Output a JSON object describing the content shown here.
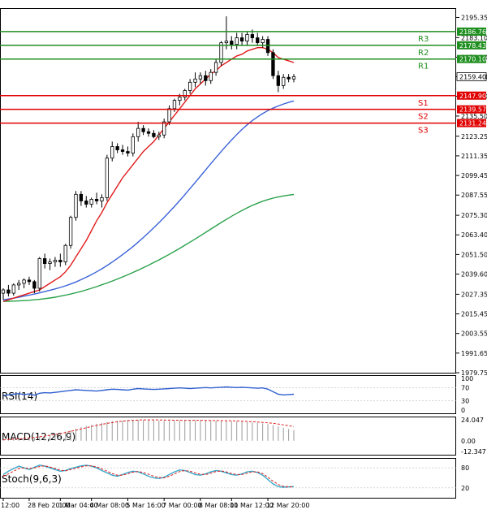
{
  "chart_data": {
    "type": "candlestick",
    "main": {
      "ylim": [
        1979.75,
        2201.0
      ],
      "y_ticks": [
        2195.35,
        2183.1,
        2171.2,
        2159.4,
        2147.5,
        2135.5,
        2123.25,
        2111.35,
        2099.45,
        2087.55,
        2075.3,
        2063.4,
        2051.5,
        2039.6,
        2027.35,
        2015.45,
        2003.55,
        1991.65,
        1979.75
      ],
      "y_tick_labels": [
        "2195.35",
        "2183.10",
        "2171.20",
        "2159.40",
        "2147.50",
        "2135.50",
        "2123.25",
        "2111.35",
        "2099.45",
        "2087.55",
        "2075.30",
        "2063.40",
        "2051.50",
        "2039.60",
        "2027.35",
        "2015.45",
        "2003.55",
        "1991.65",
        "1979.75"
      ],
      "current_price": "2159.40",
      "levels": [
        {
          "name": "R3",
          "value": 2186.76,
          "label": "2186.76",
          "color": "#1f8f1f"
        },
        {
          "name": "R2",
          "value": 2178.43,
          "label": "2178.43",
          "color": "#1f8f1f"
        },
        {
          "name": "R1",
          "value": 2170.1,
          "label": "2170.10",
          "color": "#1f8f1f"
        },
        {
          "name": "S1",
          "value": 2147.9,
          "label": "2147.90",
          "color": "#e00000"
        },
        {
          "name": "S2",
          "value": 2139.57,
          "label": "2139.57",
          "color": "#e00000"
        },
        {
          "name": "S3",
          "value": 2131.24,
          "label": "2131.24",
          "color": "#e00000"
        }
      ],
      "candles": [
        {
          "o": 2028.0,
          "h": 2031.0,
          "l": 2024.0,
          "c": 2030.0
        },
        {
          "o": 2030.0,
          "h": 2033.0,
          "l": 2026.0,
          "c": 2028.0
        },
        {
          "o": 2028.0,
          "h": 2034.0,
          "l": 2026.5,
          "c": 2033.0
        },
        {
          "o": 2033.0,
          "h": 2036.0,
          "l": 2030.0,
          "c": 2034.0
        },
        {
          "o": 2034.0,
          "h": 2037.0,
          "l": 2031.0,
          "c": 2036.0
        },
        {
          "o": 2036.0,
          "h": 2038.0,
          "l": 2033.0,
          "c": 2035.0
        },
        {
          "o": 2035.0,
          "h": 2036.0,
          "l": 2028.0,
          "c": 2031.0
        },
        {
          "o": 2031.0,
          "h": 2050.0,
          "l": 2029.0,
          "c": 2049.0
        },
        {
          "o": 2049.0,
          "h": 2052.0,
          "l": 2043.0,
          "c": 2046.0
        },
        {
          "o": 2046.0,
          "h": 2049.0,
          "l": 2042.0,
          "c": 2047.0
        },
        {
          "o": 2047.0,
          "h": 2050.0,
          "l": 2044.0,
          "c": 2048.0
        },
        {
          "o": 2048.0,
          "h": 2052.0,
          "l": 2044.0,
          "c": 2047.0
        },
        {
          "o": 2047.0,
          "h": 2058.0,
          "l": 2045.0,
          "c": 2057.0
        },
        {
          "o": 2057.0,
          "h": 2075.0,
          "l": 2055.0,
          "c": 2074.0
        },
        {
          "o": 2074.0,
          "h": 2090.0,
          "l": 2072.0,
          "c": 2088.0
        },
        {
          "o": 2088.0,
          "h": 2090.0,
          "l": 2081.0,
          "c": 2084.0
        },
        {
          "o": 2084.0,
          "h": 2087.0,
          "l": 2080.0,
          "c": 2082.0
        },
        {
          "o": 2082.0,
          "h": 2086.0,
          "l": 2080.0,
          "c": 2085.0
        },
        {
          "o": 2085.0,
          "h": 2089.0,
          "l": 2082.0,
          "c": 2084.0
        },
        {
          "o": 2084.0,
          "h": 2088.0,
          "l": 2080.0,
          "c": 2086.0
        },
        {
          "o": 2086.0,
          "h": 2112.0,
          "l": 2084.0,
          "c": 2110.0
        },
        {
          "o": 2110.0,
          "h": 2120.0,
          "l": 2108.0,
          "c": 2117.0
        },
        {
          "o": 2117.0,
          "h": 2119.0,
          "l": 2113.0,
          "c": 2115.0
        },
        {
          "o": 2115.0,
          "h": 2118.0,
          "l": 2112.0,
          "c": 2114.0
        },
        {
          "o": 2114.0,
          "h": 2117.0,
          "l": 2111.0,
          "c": 2113.0
        },
        {
          "o": 2113.0,
          "h": 2125.0,
          "l": 2111.0,
          "c": 2123.0
        },
        {
          "o": 2123.0,
          "h": 2132.0,
          "l": 2120.0,
          "c": 2128.0
        },
        {
          "o": 2128.0,
          "h": 2130.0,
          "l": 2124.0,
          "c": 2126.0
        },
        {
          "o": 2126.0,
          "h": 2128.0,
          "l": 2123.0,
          "c": 2125.0
        },
        {
          "o": 2125.0,
          "h": 2127.0,
          "l": 2122.0,
          "c": 2123.0
        },
        {
          "o": 2123.0,
          "h": 2126.0,
          "l": 2121.0,
          "c": 2124.0
        },
        {
          "o": 2124.0,
          "h": 2134.0,
          "l": 2122.0,
          "c": 2132.0
        },
        {
          "o": 2132.0,
          "h": 2142.0,
          "l": 2130.0,
          "c": 2140.0
        },
        {
          "o": 2140.0,
          "h": 2146.0,
          "l": 2138.0,
          "c": 2145.0
        },
        {
          "o": 2145.0,
          "h": 2149.0,
          "l": 2142.0,
          "c": 2147.0
        },
        {
          "o": 2147.0,
          "h": 2152.0,
          "l": 2145.0,
          "c": 2151.0
        },
        {
          "o": 2151.0,
          "h": 2158.0,
          "l": 2149.0,
          "c": 2156.0
        },
        {
          "o": 2156.0,
          "h": 2162.0,
          "l": 2153.0,
          "c": 2158.0
        },
        {
          "o": 2158.0,
          "h": 2162.0,
          "l": 2155.0,
          "c": 2160.0
        },
        {
          "o": 2160.0,
          "h": 2163.0,
          "l": 2154.0,
          "c": 2157.0
        },
        {
          "o": 2157.0,
          "h": 2164.0,
          "l": 2155.0,
          "c": 2162.0
        },
        {
          "o": 2162.0,
          "h": 2170.0,
          "l": 2160.0,
          "c": 2168.0
        },
        {
          "o": 2168.0,
          "h": 2181.0,
          "l": 2166.0,
          "c": 2180.0
        },
        {
          "o": 2180.0,
          "h": 2196.0,
          "l": 2176.0,
          "c": 2181.0
        },
        {
          "o": 2181.0,
          "h": 2184.0,
          "l": 2176.0,
          "c": 2179.0
        },
        {
          "o": 2179.0,
          "h": 2186.0,
          "l": 2176.0,
          "c": 2183.0
        },
        {
          "o": 2183.0,
          "h": 2186.0,
          "l": 2178.0,
          "c": 2181.0
        },
        {
          "o": 2181.0,
          "h": 2187.0,
          "l": 2178.0,
          "c": 2185.0
        },
        {
          "o": 2185.0,
          "h": 2188.0,
          "l": 2180.0,
          "c": 2183.0
        },
        {
          "o": 2183.0,
          "h": 2186.0,
          "l": 2178.0,
          "c": 2180.0
        },
        {
          "o": 2180.0,
          "h": 2184.0,
          "l": 2177.0,
          "c": 2182.0
        },
        {
          "o": 2182.0,
          "h": 2184.0,
          "l": 2172.0,
          "c": 2174.0
        },
        {
          "o": 2174.0,
          "h": 2176.0,
          "l": 2158.0,
          "c": 2160.0
        },
        {
          "o": 2160.0,
          "h": 2163.0,
          "l": 2150.0,
          "c": 2154.0
        },
        {
          "o": 2154.0,
          "h": 2161.0,
          "l": 2152.0,
          "c": 2159.0
        },
        {
          "o": 2159.0,
          "h": 2161.0,
          "l": 2156.0,
          "c": 2158.0
        },
        {
          "o": 2158.0,
          "h": 2161.0,
          "l": 2156.0,
          "c": 2159.4
        }
      ],
      "ma_fast": [
        2023,
        2024,
        2025,
        2026,
        2027,
        2028,
        2029,
        2030,
        2032,
        2034,
        2036,
        2038,
        2041,
        2045,
        2050,
        2055,
        2060,
        2066,
        2072,
        2077,
        2083,
        2088,
        2093,
        2098,
        2102,
        2106,
        2110,
        2114,
        2117,
        2120,
        2124,
        2128,
        2132,
        2136,
        2140,
        2144,
        2148,
        2152,
        2155,
        2158,
        2161,
        2163,
        2166,
        2168,
        2170,
        2172,
        2173,
        2175,
        2176,
        2177,
        2177,
        2176,
        2174,
        2171,
        2170,
        2169,
        2168
      ],
      "ma_mid": [
        2024,
        2024.5,
        2025,
        2025.6,
        2026.2,
        2026.8,
        2027.5,
        2028.2,
        2029,
        2029.8,
        2030.6,
        2031.5,
        2032.5,
        2033.6,
        2034.8,
        2036.2,
        2037.7,
        2039.3,
        2041,
        2042.8,
        2044.8,
        2046.9,
        2049.1,
        2051.4,
        2053.8,
        2056.3,
        2059,
        2061.8,
        2064.7,
        2067.7,
        2070.8,
        2074,
        2077.3,
        2080.7,
        2084.2,
        2087.8,
        2091.5,
        2095.2,
        2099,
        2102.8,
        2106.6,
        2110.3,
        2114,
        2117.6,
        2121,
        2124.3,
        2127.4,
        2130.2,
        2132.8,
        2135,
        2137,
        2138.8,
        2140.3,
        2141.6,
        2142.8,
        2143.8,
        2144.7
      ],
      "ma_slow": [
        2023,
        2023.1,
        2023.2,
        2023.3,
        2023.5,
        2023.7,
        2024,
        2024.3,
        2024.7,
        2025.1,
        2025.6,
        2026.2,
        2026.8,
        2027.5,
        2028.3,
        2029.1,
        2030,
        2031,
        2032,
        2033.1,
        2034.2,
        2035.4,
        2036.6,
        2037.9,
        2039.2,
        2040.6,
        2042,
        2043.5,
        2045,
        2046.6,
        2048.2,
        2049.9,
        2051.6,
        2053.4,
        2055.2,
        2057.1,
        2059,
        2060.9,
        2062.9,
        2064.9,
        2066.9,
        2068.9,
        2070.9,
        2072.8,
        2074.7,
        2076.5,
        2078.2,
        2079.8,
        2081.3,
        2082.6,
        2083.8,
        2084.8,
        2085.7,
        2086.4,
        2087,
        2087.5,
        2087.9
      ]
    },
    "rsi": {
      "label": "RSI(14)",
      "ticks": [
        "100",
        "70",
        "30",
        "0"
      ],
      "tick_values": [
        100,
        70,
        30,
        0
      ],
      "color": "#2f5fd0",
      "values": [
        46,
        48,
        50,
        52,
        49,
        51,
        47,
        53,
        55,
        54,
        56,
        58,
        60,
        62,
        64,
        63,
        62,
        61,
        60,
        62,
        64,
        66,
        65,
        64,
        63,
        66,
        68,
        67,
        66,
        65,
        66,
        67,
        68,
        69,
        70,
        69,
        68,
        69,
        70,
        71,
        70,
        71,
        72,
        73,
        72,
        71,
        72,
        71,
        70,
        69,
        70,
        66,
        58,
        50,
        48,
        49,
        50
      ]
    },
    "macd": {
      "label": "MACD(12,26,9)",
      "ticks": [
        "24.047",
        "0.00",
        "-12.347"
      ],
      "tick_values": [
        24.047,
        0,
        -12.347
      ],
      "hist": [
        1,
        1.5,
        2,
        2.5,
        3,
        3.5,
        4,
        5,
        6,
        7,
        8,
        9,
        10.5,
        12,
        14,
        15.5,
        17,
        18.5,
        19.5,
        20.5,
        21.5,
        22.5,
        23,
        23.5,
        24,
        24,
        24,
        23.8,
        23.6,
        23.4,
        23.2,
        23,
        23,
        23,
        23,
        23.2,
        23.4,
        23.5,
        23.6,
        23.5,
        23.3,
        23.1,
        22.9,
        22.7,
        22.5,
        22.2,
        21.9,
        21.5,
        21,
        20.5,
        20,
        19.2,
        18,
        16.5,
        15,
        13.5,
        12
      ],
      "signal": [
        1,
        1.4,
        1.8,
        2.2,
        2.7,
        3.2,
        3.8,
        4.5,
        5.3,
        6.2,
        7.2,
        8.2,
        9.4,
        10.7,
        12.1,
        13.5,
        14.9,
        16.3,
        17.6,
        18.8,
        19.9,
        20.9,
        21.8,
        22.5,
        23.1,
        23.5,
        23.8,
        24,
        24,
        24,
        23.9,
        23.8,
        23.7,
        23.6,
        23.5,
        23.5,
        23.5,
        23.5,
        23.5,
        23.4,
        23.3,
        23.2,
        23.1,
        23,
        22.9,
        22.7,
        22.5,
        22.2,
        21.9,
        21.5,
        21.1,
        20.6,
        20,
        19.2,
        18.3,
        17.3,
        16.2
      ]
    },
    "stoch": {
      "label": "Stoch(9,6,3)",
      "ticks": [
        "80",
        "20"
      ],
      "tick_values": [
        80,
        20
      ],
      "k": [
        60,
        70,
        78,
        85,
        80,
        75,
        82,
        88,
        85,
        80,
        75,
        70,
        72,
        78,
        82,
        86,
        88,
        85,
        80,
        72,
        65,
        58,
        55,
        60,
        66,
        70,
        68,
        62,
        55,
        50,
        48,
        52,
        60,
        68,
        74,
        72,
        66,
        60,
        58,
        62,
        68,
        72,
        70,
        65,
        60,
        58,
        62,
        68,
        70,
        66,
        58,
        45,
        32,
        24,
        22,
        23,
        24
      ],
      "d": [
        55,
        62,
        70,
        78,
        80,
        78,
        80,
        84,
        86,
        83,
        78,
        73,
        71,
        75,
        79,
        83,
        86,
        86,
        83,
        77,
        70,
        63,
        58,
        58,
        62,
        67,
        69,
        66,
        61,
        55,
        51,
        50,
        55,
        62,
        69,
        72,
        70,
        65,
        61,
        60,
        64,
        69,
        71,
        68,
        63,
        60,
        60,
        64,
        68,
        68,
        63,
        52,
        40,
        30,
        25,
        23,
        23
      ]
    },
    "x_tick_labels": [
      "12:00",
      "28 Feb 20:00",
      "1 Mar 04:00",
      "4 Mar 08:00",
      "5 Mar 16:00",
      "7 Mar 00:00",
      "8 Mar 08:00",
      "11 Mar 12:00",
      "12 Mar 20:00"
    ],
    "x_tick_index": [
      0,
      5,
      11,
      17,
      24,
      31,
      38,
      44,
      51
    ]
  }
}
